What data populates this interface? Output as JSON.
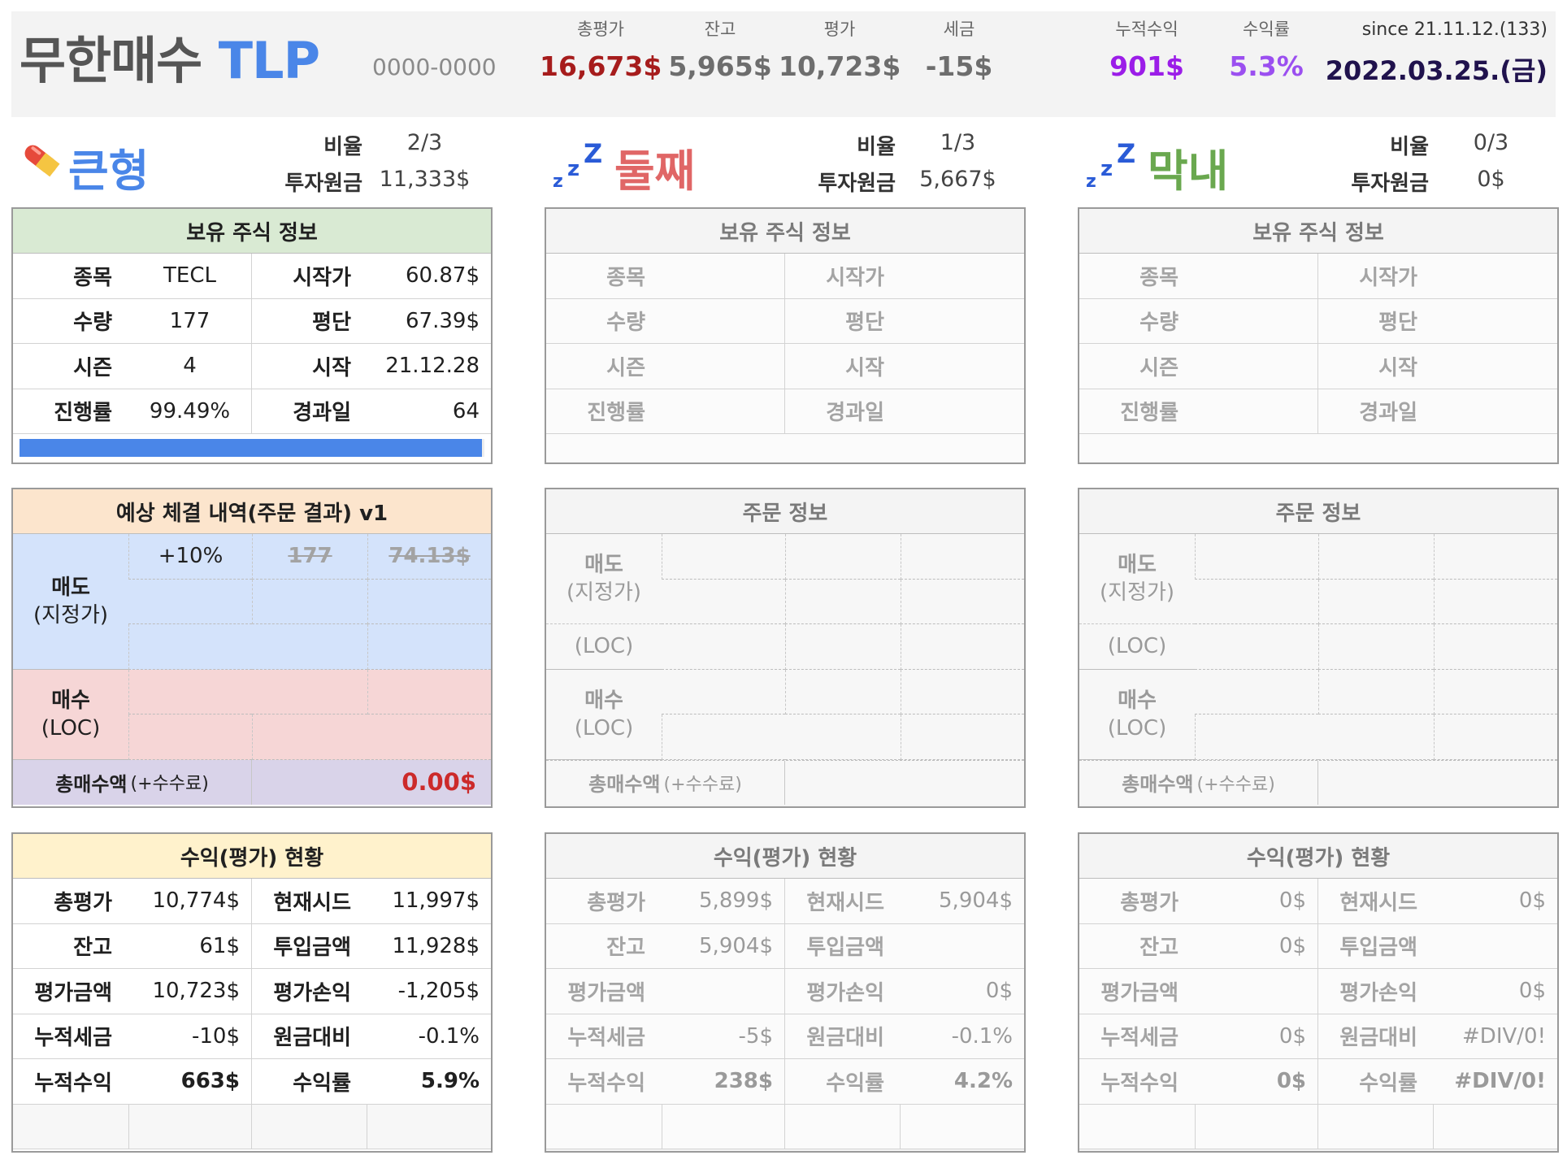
{
  "header": {
    "app_name": "무한매수",
    "app_suffix": "TLP",
    "account": "0000-0000",
    "stats": [
      {
        "label": "총평가",
        "value": "16,673$",
        "color": "#a61c1c"
      },
      {
        "label": "잔고",
        "value": "5,965$",
        "color": "#6d6d6d"
      },
      {
        "label": "평가",
        "value": "10,723$",
        "color": "#6d6d6d"
      },
      {
        "label": "세금",
        "value": "-15$",
        "color": "#6d6d6d"
      },
      {
        "label": "누적수익",
        "value": "901$",
        "color": "#9b1de8"
      },
      {
        "label": "수익률",
        "value": "5.3%",
        "color": "#9b4ff0"
      }
    ],
    "since": "since 21.11.12.(133)",
    "date": "2022.03.25.(금)"
  },
  "labels": {
    "ratio": "비율",
    "principal": "투자원금",
    "holdings_title": "보유 주식 정보",
    "order_title_active": "예상 체결 내역(주문 결과) v1",
    "order_title": "주문 정보",
    "profit_title": "수익(평가) 현황",
    "sell": "매도",
    "limit": "(지정가)",
    "loc": "(LOC)",
    "buy": "매수",
    "total_buy": "총매수액",
    "fee": "(+수수료)",
    "h_keys": [
      "종목",
      "시작가",
      "수량",
      "평단",
      "시즌",
      "시작",
      "진행률",
      "경과일"
    ],
    "p_keys": [
      "총평가",
      "현재시드",
      "잔고",
      "투입금액",
      "평가금액",
      "평가손익",
      "누적세금",
      "원금대비",
      "누적수익",
      "수익률"
    ]
  },
  "columns": [
    {
      "name": "큰형",
      "name_color": "#4a86e8",
      "icon": "pill-icon",
      "ratio": "2/3",
      "principal": "11,333$",
      "holdings": {
        "ticker": "TECL",
        "start_price": "60.87$",
        "qty": "177",
        "avg": "67.39$",
        "season": "4",
        "start": "21.12.28",
        "progress": "99.49%",
        "days": "64"
      },
      "progress_fraction": 0.9949,
      "order": {
        "sell_pct": "+10%",
        "sell_qty": "177",
        "sell_price": "74.13$",
        "total": "0.00$"
      },
      "profit": {
        "total_eval": "10,774$",
        "seed": "11,997$",
        "balance": "61$",
        "invested": "11,928$",
        "eval_amount": "10,723$",
        "eval_pl": "-1,205$",
        "tax": "-10$",
        "vs_principal": "-0.1%",
        "cum_profit": "663$",
        "rate": "5.9%"
      }
    },
    {
      "name": "둘째",
      "name_color": "#e06666",
      "icon": "zzz-icon",
      "ratio": "1/3",
      "principal": "5,667$",
      "profit": {
        "total_eval": "5,899$",
        "seed": "5,904$",
        "balance": "5,904$",
        "invested": "",
        "eval_amount": "",
        "eval_pl": "0$",
        "tax": "-5$",
        "vs_principal": "-0.1%",
        "cum_profit": "238$",
        "rate": "4.2%"
      }
    },
    {
      "name": "막내",
      "name_color": "#6aa84f",
      "icon": "zzz-icon",
      "ratio": "0/3",
      "principal": "0$",
      "profit": {
        "total_eval": "0$",
        "seed": "0$",
        "balance": "0$",
        "invested": "",
        "eval_amount": "",
        "eval_pl": "0$",
        "tax": "0$",
        "vs_principal": "#DIV/0!",
        "cum_profit": "0$",
        "rate": "#DIV/0!"
      }
    }
  ]
}
